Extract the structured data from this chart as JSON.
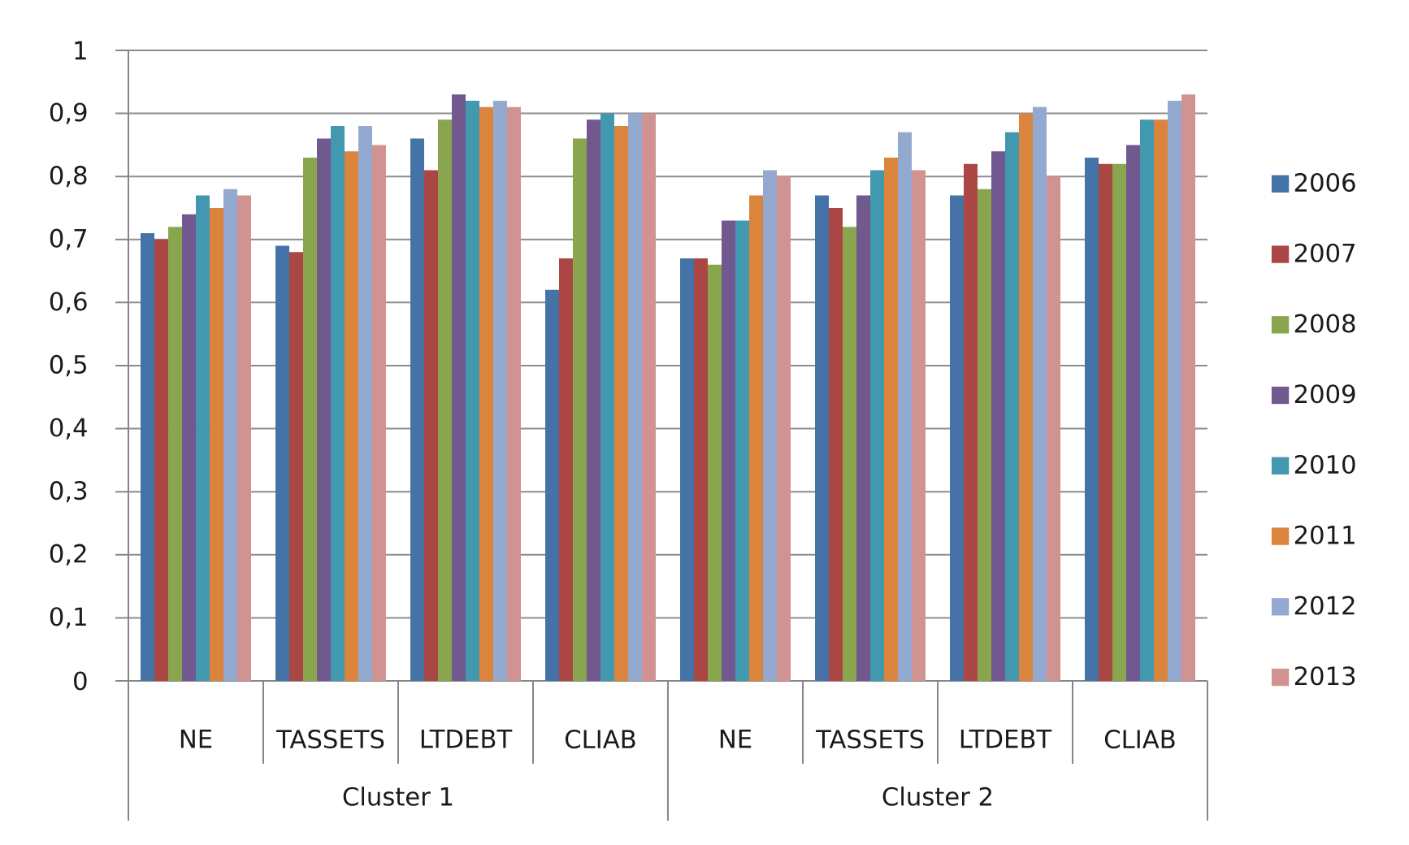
{
  "chart_data": {
    "type": "bar",
    "categories": [
      "NE",
      "TASSETS",
      "LTDEBT",
      "CLIAB",
      "NE",
      "TASSETS",
      "LTDEBT",
      "CLIAB"
    ],
    "series": [
      {
        "name": "2006",
        "color": "#4572a7",
        "values": [
          0.71,
          0.69,
          0.86,
          0.62,
          0.67,
          0.77,
          0.77,
          0.83
        ]
      },
      {
        "name": "2007",
        "color": "#aa4643",
        "values": [
          0.7,
          0.68,
          0.81,
          0.67,
          0.67,
          0.75,
          0.82,
          0.82
        ]
      },
      {
        "name": "2008",
        "color": "#89a54e",
        "values": [
          0.72,
          0.83,
          0.89,
          0.86,
          0.66,
          0.72,
          0.78,
          0.82
        ]
      },
      {
        "name": "2009",
        "color": "#71588f",
        "values": [
          0.74,
          0.86,
          0.93,
          0.89,
          0.73,
          0.77,
          0.84,
          0.85
        ]
      },
      {
        "name": "2010",
        "color": "#4198af",
        "values": [
          0.77,
          0.88,
          0.92,
          0.9,
          0.73,
          0.81,
          0.87,
          0.89
        ]
      },
      {
        "name": "2011",
        "color": "#db843d",
        "values": [
          0.75,
          0.84,
          0.91,
          0.88,
          0.77,
          0.83,
          0.9,
          0.89
        ]
      },
      {
        "name": "2012",
        "color": "#93a9cf",
        "values": [
          0.78,
          0.88,
          0.92,
          0.9,
          0.81,
          0.87,
          0.91,
          0.92
        ]
      },
      {
        "name": "2013",
        "color": "#d19392",
        "values": [
          0.77,
          0.85,
          0.91,
          0.9,
          0.8,
          0.81,
          0.8,
          0.93
        ]
      }
    ],
    "ylim": [
      0,
      1
    ],
    "yticks": [
      0,
      {
        "value": 0.1,
        "label": "0,1"
      },
      {
        "value": 0.2,
        "label": "0,2"
      },
      {
        "value": 0.3,
        "label": "0,3"
      },
      {
        "value": 0.4,
        "label": "0,4"
      },
      {
        "value": 0.5,
        "label": "0,5"
      },
      {
        "value": 0.6,
        "label": "0,6"
      },
      {
        "value": 0.7,
        "label": "0,7"
      },
      {
        "value": 0.8,
        "label": "0,8"
      },
      {
        "value": 0.9,
        "label": "0,9"
      },
      1
    ],
    "grid": "y",
    "legend": "right",
    "annotations": [
      "Cluster 1",
      "Cluster 2"
    ]
  }
}
